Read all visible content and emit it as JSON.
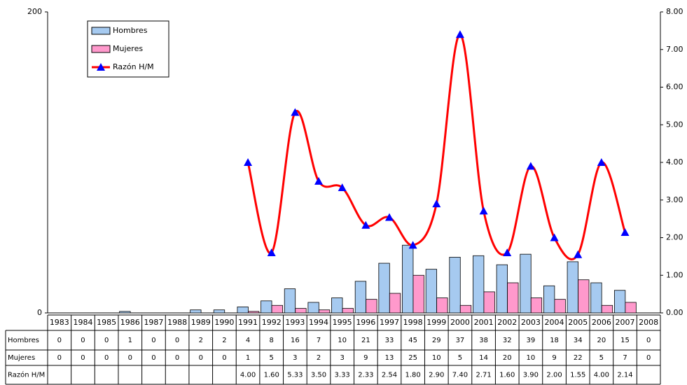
{
  "chart_data": {
    "type": "bar",
    "categories": [
      "1983",
      "1984",
      "1985",
      "1986",
      "1987",
      "1988",
      "1989",
      "1990",
      "1991",
      "1992",
      "1993",
      "1994",
      "1995",
      "1996",
      "1997",
      "1998",
      "1999",
      "2000",
      "2001",
      "2002",
      "2003",
      "2004",
      "2005",
      "2006",
      "2007",
      "2008"
    ],
    "series": [
      {
        "name": "Hombres",
        "color": "#a6caf0",
        "values": [
          0,
          0,
          0,
          1,
          0,
          0,
          2,
          2,
          4,
          8,
          16,
          7,
          10,
          21,
          33,
          45,
          29,
          37,
          38,
          32,
          39,
          18,
          34,
          20,
          15,
          0
        ]
      },
      {
        "name": "Mujeres",
        "color": "#ff99cc",
        "values": [
          0,
          0,
          0,
          0,
          0,
          0,
          0,
          0,
          1,
          5,
          3,
          2,
          3,
          9,
          13,
          25,
          10,
          5,
          14,
          20,
          10,
          9,
          22,
          5,
          7,
          0
        ]
      },
      {
        "name": "Razón H/M",
        "type": "line",
        "axis": "y2",
        "color": "#ff0000",
        "marker_color": "#0000ff",
        "values": [
          null,
          null,
          null,
          null,
          null,
          null,
          null,
          null,
          4,
          1.6,
          5.33,
          3.5,
          3.33,
          2.33,
          2.54,
          1.8,
          2.9,
          7.4,
          2.71,
          1.6,
          3.9,
          2,
          1.55,
          4,
          2.14,
          null
        ],
        "value_labels": [
          null,
          null,
          null,
          null,
          null,
          null,
          null,
          null,
          "4.00",
          "1.60",
          "5.33",
          "3.50",
          "3.33",
          "2.33",
          "2.54",
          "1.80",
          "2.90",
          "7.40",
          "2.71",
          "1.60",
          "3.90",
          "2.00",
          "1.55",
          "4.00",
          "2.14",
          null
        ]
      }
    ],
    "ylim": [
      0,
      200
    ],
    "yticks": [
      0,
      200
    ],
    "y2lim": [
      0,
      8
    ],
    "y2ticks": [
      {
        "value": 0,
        "label": "0.00"
      },
      {
        "value": 1,
        "label": "1.00"
      },
      {
        "value": 2,
        "label": "2.00"
      },
      {
        "value": 3,
        "label": "3.00"
      },
      {
        "value": 4,
        "label": "4.00"
      },
      {
        "value": 5,
        "label": "5.00"
      },
      {
        "value": 6,
        "label": "6.00"
      },
      {
        "value": 7,
        "label": "7.00"
      },
      {
        "value": 8,
        "label": "8.00"
      }
    ],
    "legend": "upper left"
  }
}
